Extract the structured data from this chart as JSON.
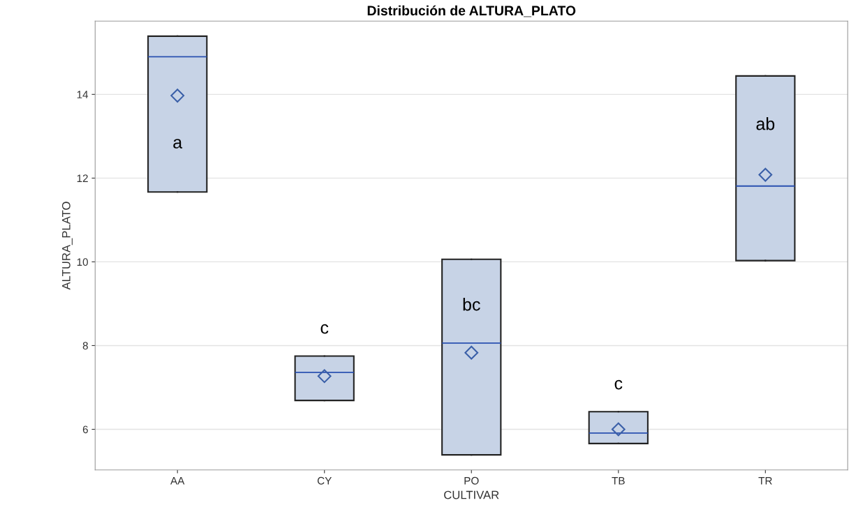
{
  "chart_data": {
    "type": "box",
    "title": "Distribución de ALTURA_PLATO",
    "xlabel": "CULTIVAR",
    "ylabel": "ALTURA_PLATO",
    "categories": [
      "AA",
      "CY",
      "PO",
      "TB",
      "TR"
    ],
    "boxes": [
      {
        "low": 11.67,
        "q1": 11.67,
        "median": 14.9,
        "q3": 15.39,
        "high": 15.39,
        "mean": 13.97
      },
      {
        "low": 6.69,
        "q1": 6.69,
        "median": 7.36,
        "q3": 7.75,
        "high": 7.75,
        "mean": 7.27
      },
      {
        "low": 5.39,
        "q1": 5.39,
        "median": 8.06,
        "q3": 10.06,
        "high": 10.06,
        "mean": 7.83
      },
      {
        "low": 5.66,
        "q1": 5.66,
        "median": 5.91,
        "q3": 6.42,
        "high": 6.42,
        "mean": 6.0
      },
      {
        "low": 10.03,
        "q1": 10.03,
        "median": 11.81,
        "q3": 14.44,
        "high": 14.44,
        "mean": 12.08
      }
    ],
    "color": "#c7d3e6",
    "annotations": [
      "a",
      "c",
      "bc",
      "c",
      "ab"
    ],
    "ylim": [
      5.03,
      15.75
    ],
    "yticks": [
      6,
      8,
      10,
      12,
      14
    ],
    "grid": "y",
    "marker": "diamond"
  }
}
